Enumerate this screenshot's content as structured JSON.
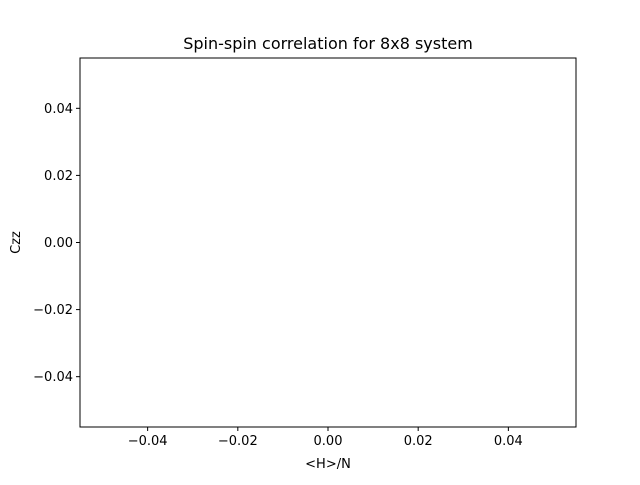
{
  "chart_data": {
    "type": "line",
    "title": "Spin-spin correlation for 8x8 system",
    "xlabel": "<H>/N",
    "ylabel": "Czz",
    "xlim": [
      -0.055,
      0.055
    ],
    "ylim": [
      -0.055,
      0.055
    ],
    "xticks": [
      -0.04,
      -0.02,
      0.0,
      0.02,
      0.04
    ],
    "yticks": [
      -0.04,
      -0.02,
      0.0,
      0.02,
      0.04
    ],
    "xtick_labels": [
      "−0.04",
      "−0.02",
      "0.00",
      "0.02",
      "0.04"
    ],
    "ytick_labels": [
      "−0.04",
      "−0.02",
      "0.00",
      "0.02",
      "0.04"
    ],
    "series": [],
    "grid": false
  }
}
